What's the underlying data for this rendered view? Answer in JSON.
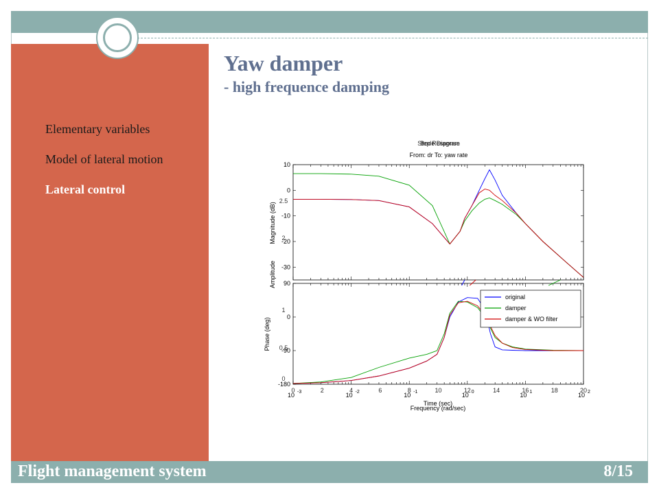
{
  "slide": {
    "title": "Yaw damper",
    "subtitle": "- high frequence damping",
    "footer_title": "Flight management system",
    "page_number": "8/15"
  },
  "sidebar": {
    "items": [
      {
        "label": "Elementary variables",
        "active": false
      },
      {
        "label": "Model of lateral motion",
        "active": false
      },
      {
        "label": "Lateral control",
        "active": true
      }
    ]
  },
  "colors": {
    "accent_teal": "#8cafad",
    "sidebar_orange": "#d4664c",
    "title_blue": "#5f6f8f"
  },
  "chart_data": {
    "type": "line",
    "overlaid_titles": [
      "Step Response",
      "Bode Diagram"
    ],
    "subtitle": "From: dr  To: yaw rate",
    "xscale": "log",
    "xlim": [
      0.001,
      100
    ],
    "x_tick_labels": [
      "10",
      "10",
      "10",
      "10",
      "10",
      "10"
    ],
    "x_tick_exponents": [
      "-3",
      "-2",
      "-1",
      "0",
      "1",
      "2"
    ],
    "x_step_ticks": [
      "0",
      "2",
      "4",
      "6",
      "8",
      "10",
      "12",
      "14",
      "16",
      "18",
      "20"
    ],
    "xlabel_step": "Time (sec)",
    "xlabel": "Frequency (rad/sec)",
    "magnitude": {
      "ylabel": "Magnitude (dB)",
      "ylim": [
        -35,
        10
      ],
      "yticks": [
        "10",
        "0",
        "-10",
        "-20",
        "-30"
      ],
      "step_yticks": [
        "2.5",
        "2"
      ],
      "series": [
        {
          "name": "original",
          "color": "#0000ff",
          "x": [
            0.001,
            0.003,
            0.01,
            0.03,
            0.1,
            0.25,
            0.5,
            0.75,
            0.9,
            1.2,
            1.6,
            2.0,
            2.4,
            3.0,
            4.0,
            7.0,
            10,
            20,
            50,
            100
          ],
          "y": [
            -3.5,
            -3.5,
            -3.6,
            -4.0,
            -6.5,
            -13,
            -21,
            -16,
            -11,
            -6,
            0,
            4.5,
            8,
            4,
            -2,
            -9,
            -13,
            -20,
            -28,
            -34
          ]
        },
        {
          "name": "damper",
          "color": "#00a000",
          "x": [
            0.001,
            0.003,
            0.01,
            0.03,
            0.1,
            0.25,
            0.5,
            0.75,
            0.9,
            1.2,
            1.6,
            2.0,
            2.4,
            3.0,
            4.0,
            7.0,
            10,
            20,
            50,
            100
          ],
          "y": [
            6.5,
            6.5,
            6.3,
            5.5,
            2,
            -6,
            -21,
            -16,
            -12,
            -8,
            -5,
            -3.5,
            -3,
            -4,
            -5.5,
            -9.5,
            -13,
            -20,
            -28,
            -34
          ]
        },
        {
          "name": "damper & WO filter",
          "color": "#d00000",
          "x": [
            0.001,
            0.003,
            0.01,
            0.03,
            0.1,
            0.25,
            0.5,
            0.75,
            0.9,
            1.2,
            1.6,
            2.0,
            2.4,
            3.0,
            4.0,
            7.0,
            10,
            20,
            50,
            100
          ],
          "y": [
            -3.5,
            -3.5,
            -3.6,
            -4.0,
            -6.5,
            -13,
            -21,
            -16,
            -11,
            -6,
            -1,
            0.5,
            0,
            -2,
            -4,
            -9,
            -13,
            -20,
            -28,
            -34
          ]
        }
      ]
    },
    "phase": {
      "ylabel": "Phase (deg)",
      "ylim": [
        -180,
        90
      ],
      "yticks": [
        "90",
        "0",
        "-90",
        "-180"
      ],
      "step_yticks": [
        "1",
        "0.5",
        "0"
      ],
      "series": [
        {
          "name": "original",
          "color": "#0000ff",
          "x": [
            0.001,
            0.003,
            0.01,
            0.03,
            0.1,
            0.2,
            0.3,
            0.4,
            0.5,
            0.7,
            1.0,
            1.5,
            2.0,
            2.5,
            3.0,
            4.0,
            6.0,
            10,
            30,
            100
          ],
          "y": [
            -178,
            -176,
            -170,
            -158,
            -137,
            -118,
            -100,
            -55,
            0,
            40,
            52,
            50,
            20,
            -45,
            -80,
            -88,
            -89,
            -90,
            -90,
            -90
          ]
        },
        {
          "name": "damper",
          "color": "#00a000",
          "x": [
            0.001,
            0.003,
            0.01,
            0.03,
            0.1,
            0.2,
            0.3,
            0.4,
            0.5,
            0.7,
            1.0,
            1.5,
            2.0,
            2.5,
            3.0,
            4.0,
            6.0,
            10,
            30,
            100
          ],
          "y": [
            -178,
            -174,
            -162,
            -135,
            -110,
            -100,
            -90,
            -45,
            10,
            42,
            40,
            25,
            0,
            -30,
            -55,
            -70,
            -80,
            -86,
            -89,
            -90
          ]
        },
        {
          "name": "damper & WO filter",
          "color": "#d00000",
          "x": [
            0.001,
            0.003,
            0.01,
            0.03,
            0.1,
            0.2,
            0.3,
            0.4,
            0.5,
            0.7,
            1.0,
            1.5,
            2.0,
            2.5,
            3.0,
            4.0,
            6.0,
            10,
            30,
            100
          ],
          "y": [
            -178,
            -176,
            -170,
            -158,
            -137,
            -118,
            -100,
            -55,
            5,
            38,
            42,
            30,
            5,
            -25,
            -50,
            -70,
            -82,
            -87,
            -90,
            -90
          ]
        }
      ]
    },
    "step_amplitude_label": "Amplitude",
    "legend": {
      "placement": "top-right of phase panel",
      "entries": [
        "original",
        "damper",
        "damper & WO filter"
      ]
    }
  }
}
